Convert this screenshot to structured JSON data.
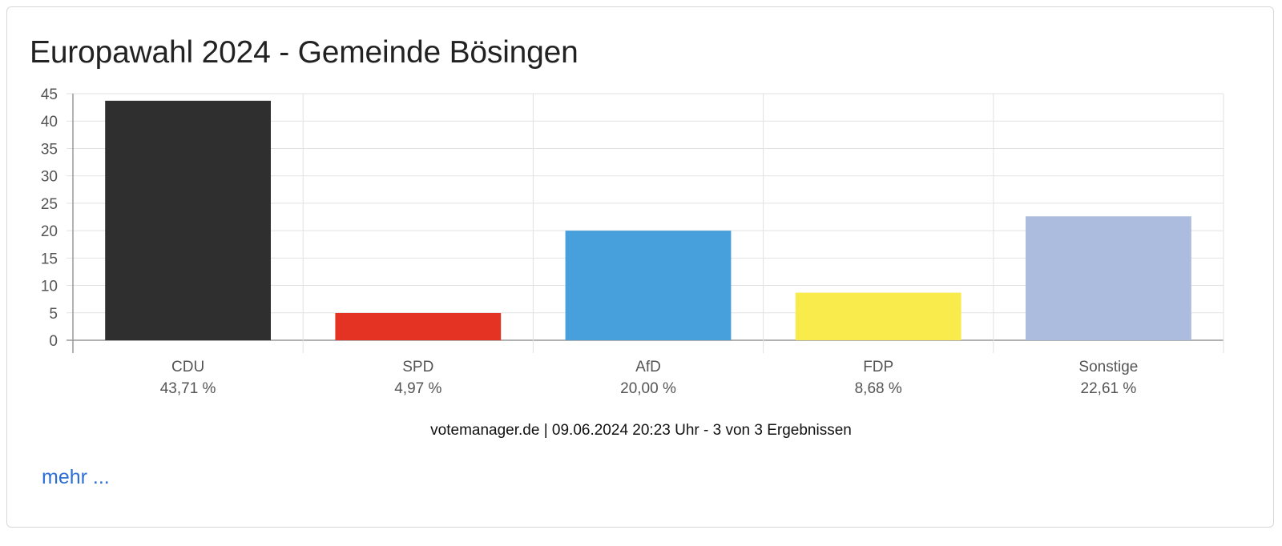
{
  "chart_data": {
    "type": "bar",
    "title": "Europawahl 2024 - Gemeinde Bösingen",
    "categories": [
      "CDU",
      "SPD",
      "AfD",
      "FDP",
      "Sonstige"
    ],
    "value_labels": [
      "43,71 %",
      "4,97 %",
      "20,00 %",
      "8,68 %",
      "22,61 %"
    ],
    "values": [
      43.71,
      4.97,
      20.0,
      8.68,
      22.61
    ],
    "colors": [
      "#2f2f2f",
      "#e43223",
      "#479fdb",
      "#f9eb4b",
      "#abbcdf"
    ],
    "ylim": [
      0,
      45
    ],
    "yticks": [
      0,
      5,
      10,
      15,
      20,
      25,
      30,
      35,
      40,
      45
    ],
    "grid": true,
    "legend": "none"
  },
  "footer": "votemanager.de | 09.06.2024 20:23 Uhr - 3 von 3 Ergebnissen",
  "more_link": "mehr ...",
  "colors": {
    "link": "#2b6fd6"
  }
}
